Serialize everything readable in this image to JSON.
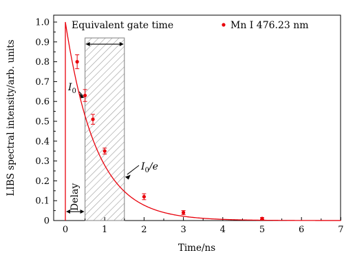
{
  "chart_data": {
    "type": "scatter",
    "xlabel": "Time/ns",
    "ylabel": "LIBS spectral intensity/arb. units",
    "xlim": [
      -0.3,
      7
    ],
    "ylim": [
      0,
      1.05
    ],
    "x_ticks": [
      0,
      1,
      2,
      3,
      4,
      5,
      6,
      7
    ],
    "y_ticks": [
      0,
      0.1,
      0.2,
      0.3,
      0.4,
      0.5,
      0.6,
      0.7,
      0.8,
      0.9,
      1.0
    ],
    "x_tick_labels": [
      "0",
      "1",
      "2",
      "3",
      "4",
      "5",
      "6",
      "7"
    ],
    "y_tick_labels": [
      "0",
      "0.1",
      "0.2",
      "0.3",
      "0.4",
      "0.5",
      "0.6",
      "0.7",
      "0.8",
      "0.9",
      "1.0"
    ],
    "series": [
      {
        "name": "Mn I 476.23 nm",
        "color": "#e8000b",
        "points": [
          {
            "x": 0.3,
            "y": 0.8,
            "err": 0.035
          },
          {
            "x": 0.5,
            "y": 0.63,
            "err": 0.03
          },
          {
            "x": 0.7,
            "y": 0.51,
            "err": 0.025
          },
          {
            "x": 1.0,
            "y": 0.35,
            "err": 0.015
          },
          {
            "x": 2.0,
            "y": 0.12,
            "err": 0.015
          },
          {
            "x": 3.0,
            "y": 0.04,
            "err": 0.01
          },
          {
            "x": 5.0,
            "y": 0.01,
            "err": 0.005
          }
        ]
      }
    ],
    "fit_curve": {
      "color": "#e8000b",
      "peak": 1.0,
      "decay_constant_ns": 1.0,
      "delay_ns": 0.5
    },
    "gate_region": {
      "x_start": 0.5,
      "x_end": 1.5,
      "y_top": 0.92,
      "hatch_color": "#9a9a9a"
    },
    "annotations": {
      "legend_title": "Equivalent gate time",
      "i0": "I",
      "i0_sub": "0",
      "i0e": "I",
      "i0e_sub": "0",
      "i0e_suffix": "/e",
      "delay": "Delay"
    },
    "legend": {
      "position": "top-right",
      "entry": "Mn I 476.23 nm"
    },
    "grid": false
  }
}
